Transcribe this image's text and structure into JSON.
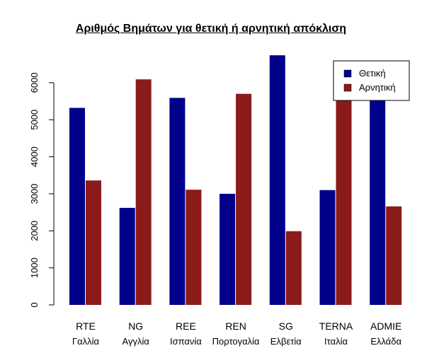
{
  "chart_data": {
    "type": "bar",
    "title": "Αριθμός Βημάτων για θετική ή αρνητική απόκλιση",
    "xlabel": "",
    "ylabel": "",
    "categories": [
      {
        "code": "RTE",
        "country": "Γαλλία"
      },
      {
        "code": "NG",
        "country": "Αγγλία"
      },
      {
        "code": "REE",
        "country": "Ισπανία"
      },
      {
        "code": "REN",
        "country": "Πορτογαλία"
      },
      {
        "code": "SG",
        "country": "Ελβετία"
      },
      {
        "code": "TERNA",
        "country": "Ιταλία"
      },
      {
        "code": "ADMIE",
        "country": "Ελλάδα"
      }
    ],
    "series": [
      {
        "name": "Θετική",
        "color": "#00008B",
        "values": [
          5320,
          2620,
          5590,
          3000,
          6740,
          3100,
          5580
        ]
      },
      {
        "name": "Αρνητική",
        "color": "#8B1A1A",
        "values": [
          3360,
          6090,
          3110,
          5700,
          1990,
          5550,
          2660
        ]
      }
    ],
    "ylim": [
      0,
      6800
    ],
    "yticks": [
      0,
      1000,
      2000,
      3000,
      4000,
      5000,
      6000
    ],
    "grid": false,
    "legend_position": "top-right"
  }
}
